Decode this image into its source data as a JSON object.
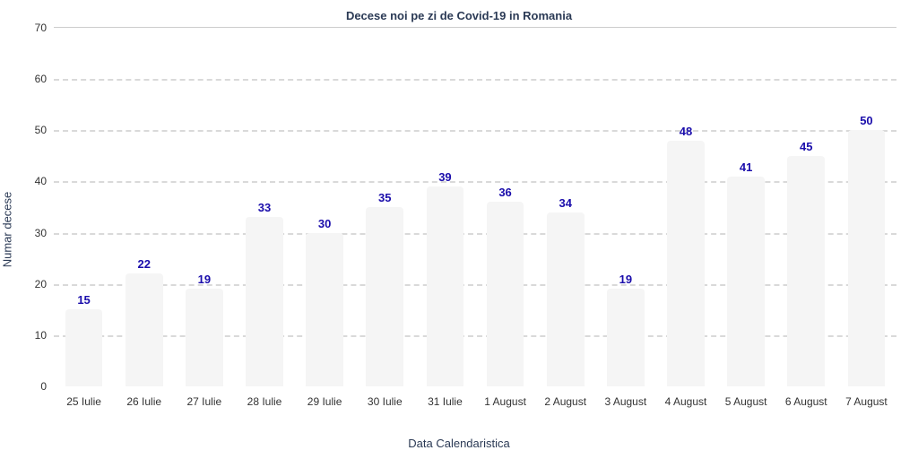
{
  "chart": {
    "type": "bar",
    "title": "Decese noi pe zi de Covid-19 in Romania",
    "xlabel": "Data Calendaristica",
    "ylabel": "Numar decese",
    "background_color": "#ffffff",
    "grid_color": "#d9d9d9",
    "grid_dash": [
      8,
      8
    ],
    "title_color": "#2b3a55",
    "title_fontsize": 13,
    "axis_label_color": "#2b3a55",
    "axis_label_fontsize": 13,
    "tick_fontsize": 12,
    "bar_label_color": "#1a0dab",
    "bar_label_fontsize": 13,
    "bar_color": "#f5f5f5",
    "bar_width_ratio": 0.62,
    "ylim": [
      0,
      70
    ],
    "yticks": [
      0,
      10,
      20,
      30,
      40,
      50,
      60,
      70
    ],
    "categories": [
      "25 Iulie",
      "26 Iulie",
      "27 Iulie",
      "28 Iulie",
      "29 Iulie",
      "30 Iulie",
      "31 Iulie",
      "1 August",
      "2 August",
      "3 August",
      "4 August",
      "5 August",
      "6 August",
      "7 August"
    ],
    "values": [
      15,
      22,
      19,
      33,
      30,
      35,
      39,
      36,
      34,
      19,
      48,
      41,
      45,
      50
    ]
  }
}
